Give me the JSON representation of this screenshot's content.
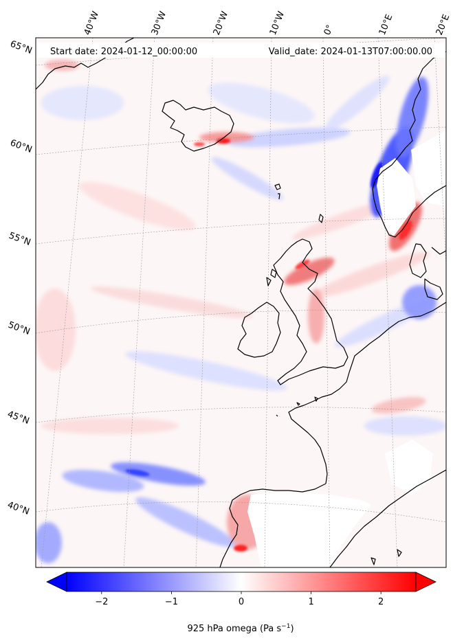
{
  "header": {
    "start_label": "Start date: 2024-01-12_00:00:00",
    "valid_label": "Valid_date: 2024-01-13T07:00:00.00"
  },
  "axes": {
    "lon_labels": [
      "40°W",
      "30°W",
      "20°W",
      "10°W",
      "0°",
      "10°E",
      "20°E"
    ],
    "lat_labels": [
      "65°N",
      "60°N",
      "55°N",
      "50°N",
      "45°N",
      "40°N"
    ]
  },
  "colorbar": {
    "ticks": [
      "−2",
      "−1",
      "0",
      "1",
      "2"
    ],
    "tick_values": [
      -2,
      -1,
      0,
      1,
      2
    ],
    "range": [
      -2.5,
      2.5
    ],
    "label": "925 hPa omega (Pa s",
    "label_exp": "−1",
    "label_end": ")",
    "colors": {
      "low": "#0000ff",
      "mid": "#ffffff",
      "high": "#ff0000"
    }
  },
  "map": {
    "field": "925 hPa omega",
    "colormap": "bwr",
    "coastline_color": "#000000",
    "gridline_style": "dotted grey",
    "missing_color": "#ffffff"
  }
}
